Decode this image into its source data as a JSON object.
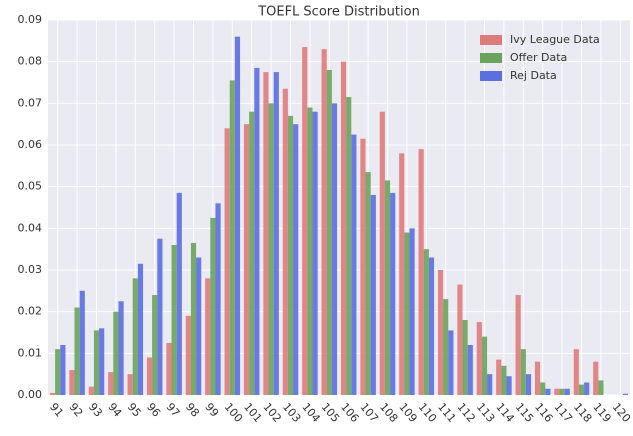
{
  "chart_data": {
    "type": "bar",
    "title": "TOEFL Score Distribution",
    "categories": [
      "91",
      "92",
      "93",
      "94",
      "95",
      "96",
      "97",
      "98",
      "99",
      "100",
      "101",
      "102",
      "103",
      "104",
      "105",
      "106",
      "107",
      "108",
      "109",
      "110",
      "111",
      "112",
      "113",
      "114",
      "115",
      "116",
      "117",
      "118",
      "119",
      "120"
    ],
    "series": [
      {
        "name": "Ivy League Data",
        "color": "#e07b7b",
        "values": [
          0.0005,
          0.006,
          0.002,
          0.0055,
          0.005,
          0.009,
          0.0125,
          0.019,
          0.028,
          0.064,
          0.065,
          0.0775,
          0.0735,
          0.0835,
          0.083,
          0.08,
          0.0615,
          0.068,
          0.058,
          0.059,
          0.03,
          0.0265,
          0.0175,
          0.0085,
          0.024,
          0.008,
          0.0015,
          0.011,
          0.008,
          0
        ]
      },
      {
        "name": "Offer Data",
        "color": "#6aa35a",
        "values": [
          0.011,
          0.021,
          0.0155,
          0.02,
          0.028,
          0.024,
          0.036,
          0.0365,
          0.0425,
          0.0755,
          0.068,
          0.07,
          0.067,
          0.069,
          0.078,
          0.0715,
          0.0535,
          0.0515,
          0.039,
          0.035,
          0.023,
          0.018,
          0.014,
          0.007,
          0.011,
          0.003,
          0.0015,
          0.0025,
          0.0035,
          0
        ]
      },
      {
        "name": "Rej Data",
        "color": "#5b6fe0",
        "values": [
          0.012,
          0.025,
          0.016,
          0.0225,
          0.0315,
          0.0375,
          0.0485,
          0.033,
          0.046,
          0.086,
          0.0785,
          0.0775,
          0.065,
          0.068,
          0.07,
          0.0625,
          0.048,
          0.0485,
          0.04,
          0.033,
          0.0155,
          0.012,
          0.005,
          0.0045,
          0.005,
          0.0015,
          0.0015,
          0.003,
          0,
          0.0003
        ]
      }
    ],
    "ylim": [
      0,
      0.09
    ],
    "yticks": [
      {
        "value": 0,
        "label": "0.00"
      },
      {
        "value": 0.01,
        "label": "0.01"
      },
      {
        "value": 0.02,
        "label": "0.02"
      },
      {
        "value": 0.03,
        "label": "0.03"
      },
      {
        "value": 0.04,
        "label": "0.04"
      },
      {
        "value": 0.05,
        "label": "0.05"
      },
      {
        "value": 0.06,
        "label": "0.06"
      },
      {
        "value": 0.07,
        "label": "0.07"
      },
      {
        "value": 0.08,
        "label": "0.08"
      },
      {
        "value": 0.09,
        "label": "0.09"
      }
    ],
    "grid": true,
    "legend": "upper right"
  }
}
